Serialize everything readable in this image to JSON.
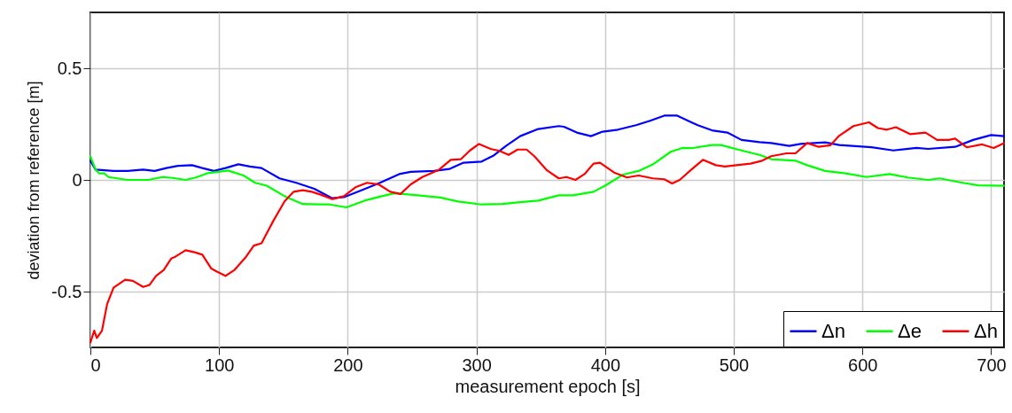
{
  "chart_data": {
    "type": "line",
    "xlabel": "measurement epoch [s]",
    "ylabel": "deviation from reference [m]",
    "xlim": [
      0,
      710
    ],
    "xticks": [
      0,
      100,
      200,
      300,
      400,
      500,
      600,
      700
    ],
    "ylim": [
      -0.75,
      0.75
    ],
    "yticks": [
      -0.5,
      0,
      0.5
    ],
    "grid": true,
    "legend": "bottom right",
    "line_style": "solid",
    "series": [
      {
        "name": "Δn",
        "color": "#0000ff",
        "x": [
          0,
          4,
          18,
          29,
          41,
          50,
          59,
          68,
          79,
          87,
          96,
          105,
          115,
          124,
          133,
          147,
          160,
          174,
          188,
          197,
          211,
          225,
          240,
          249,
          267,
          279,
          290,
          304,
          313,
          323,
          334,
          348,
          364,
          368,
          378,
          389,
          398,
          410,
          424,
          435,
          446,
          456,
          467,
          472,
          483,
          495,
          506,
          520,
          529,
          543,
          552,
          571,
          582,
          607,
          624,
          642,
          651,
          672,
          686,
          700,
          710
        ],
        "values": [
          0.086,
          0.046,
          0.04,
          0.04,
          0.046,
          0.04,
          0.053,
          0.063,
          0.066,
          0.053,
          0.04,
          0.053,
          0.07,
          0.06,
          0.053,
          0.007,
          -0.013,
          -0.04,
          -0.082,
          -0.077,
          -0.046,
          -0.013,
          0.026,
          0.036,
          0.04,
          0.049,
          0.077,
          0.082,
          0.108,
          0.152,
          0.196,
          0.228,
          0.241,
          0.238,
          0.212,
          0.196,
          0.216,
          0.225,
          0.245,
          0.265,
          0.288,
          0.288,
          0.258,
          0.245,
          0.222,
          0.212,
          0.179,
          0.169,
          0.165,
          0.152,
          0.161,
          0.168,
          0.156,
          0.146,
          0.132,
          0.143,
          0.139,
          0.148,
          0.179,
          0.201,
          0.196
        ]
      },
      {
        "name": "Δe",
        "color": "#00ff00",
        "x": [
          0,
          4,
          7,
          11,
          14,
          29,
          45,
          56,
          64,
          74,
          82,
          91,
          101,
          107,
          119,
          128,
          137,
          151,
          165,
          179,
          186,
          199,
          213,
          225,
          236,
          249,
          272,
          286,
          304,
          320,
          336,
          348,
          364,
          375,
          391,
          400,
          414,
          426,
          437,
          451,
          460,
          467,
          483,
          490,
          506,
          520,
          529,
          548,
          557,
          571,
          587,
          603,
          621,
          635,
          651,
          660,
          676,
          690,
          710
        ],
        "values": [
          0.106,
          0.046,
          0.029,
          0.029,
          0.013,
          0,
          0,
          0.013,
          0.009,
          0,
          0.011,
          0.03,
          0.037,
          0.042,
          0.02,
          -0.013,
          -0.026,
          -0.073,
          -0.108,
          -0.11,
          -0.11,
          -0.123,
          -0.093,
          -0.075,
          -0.06,
          -0.066,
          -0.079,
          -0.097,
          -0.11,
          -0.108,
          -0.099,
          -0.093,
          -0.069,
          -0.069,
          -0.053,
          -0.026,
          0.024,
          0.04,
          0.069,
          0.126,
          0.143,
          0.142,
          0.156,
          0.156,
          0.132,
          0.112,
          0.093,
          0.086,
          0.066,
          0.04,
          0.029,
          0.013,
          0.026,
          0.011,
          0,
          0.007,
          -0.011,
          -0.024,
          -0.026
        ]
      },
      {
        "name": "Δh",
        "color": "#ff0000",
        "x": [
          0,
          3,
          5,
          9,
          13,
          18,
          27,
          33,
          41,
          46,
          51,
          57,
          63,
          66,
          74,
          81,
          87,
          94,
          98,
          105,
          112,
          121,
          127,
          133,
          142,
          151,
          158,
          165,
          172,
          179,
          188,
          197,
          206,
          215,
          224,
          233,
          241,
          249,
          258,
          271,
          280,
          288,
          295,
          302,
          311,
          318,
          325,
          332,
          339,
          345,
          355,
          364,
          370,
          377,
          384,
          391,
          396,
          407,
          417,
          426,
          437,
          446,
          452,
          458,
          467,
          476,
          486,
          493,
          502,
          513,
          522,
          529,
          541,
          548,
          557,
          566,
          575,
          582,
          593,
          605,
          612,
          619,
          626,
          637,
          649,
          658,
          667,
          672,
          681,
          693,
          702,
          710
        ],
        "values": [
          -0.728,
          -0.675,
          -0.708,
          -0.675,
          -0.556,
          -0.483,
          -0.447,
          -0.452,
          -0.479,
          -0.47,
          -0.43,
          -0.403,
          -0.351,
          -0.344,
          -0.315,
          -0.324,
          -0.335,
          -0.397,
          -0.41,
          -0.43,
          -0.403,
          -0.344,
          -0.294,
          -0.284,
          -0.185,
          -0.095,
          -0.053,
          -0.046,
          -0.053,
          -0.066,
          -0.086,
          -0.073,
          -0.033,
          -0.013,
          -0.02,
          -0.053,
          -0.063,
          -0.02,
          0.013,
          0.046,
          0.09,
          0.093,
          0.132,
          0.161,
          0.139,
          0.13,
          0.112,
          0.136,
          0.136,
          0.106,
          0.042,
          0.007,
          0.013,
          0,
          0.026,
          0.073,
          0.077,
          0.033,
          0.011,
          0.02,
          0.007,
          0.003,
          -0.016,
          0,
          0.046,
          0.09,
          0.066,
          0.06,
          0.066,
          0.073,
          0.086,
          0.106,
          0.119,
          0.119,
          0.165,
          0.148,
          0.155,
          0.198,
          0.241,
          0.258,
          0.232,
          0.225,
          0.236,
          0.205,
          0.212,
          0.179,
          0.179,
          0.185,
          0.146,
          0.159,
          0.143,
          0.165
        ]
      }
    ]
  }
}
